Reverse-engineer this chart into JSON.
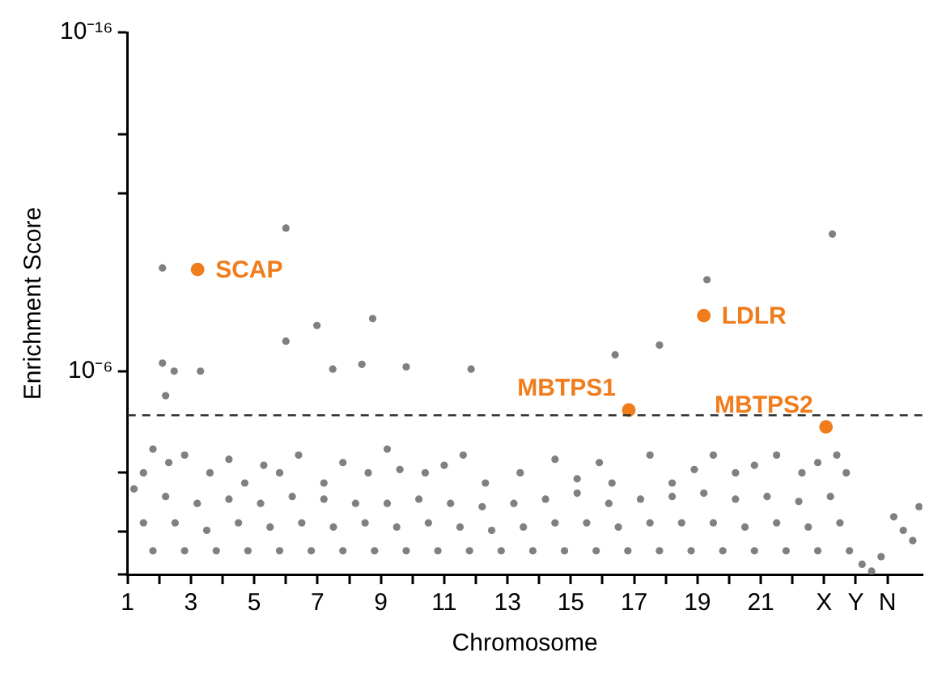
{
  "chart_data": {
    "type": "scatter",
    "xlabel": "Chromosome",
    "ylabel": "Enrichment Score",
    "log": "y",
    "grid": false,
    "legend": false,
    "marker": "circle",
    "xlim": [
      1,
      26.1
    ],
    "xticks": [
      {
        "value": 1,
        "label": "1"
      },
      {
        "value": 2,
        "label": null
      },
      {
        "value": 3,
        "label": "3"
      },
      {
        "value": 4,
        "label": null
      },
      {
        "value": 5,
        "label": "5"
      },
      {
        "value": 6,
        "label": null
      },
      {
        "value": 7,
        "label": "7"
      },
      {
        "value": 8,
        "label": null
      },
      {
        "value": 9,
        "label": "9"
      },
      {
        "value": 10,
        "label": null
      },
      {
        "value": 11,
        "label": "11"
      },
      {
        "value": 12,
        "label": null
      },
      {
        "value": 13,
        "label": "13"
      },
      {
        "value": 14,
        "label": null
      },
      {
        "value": 15,
        "label": "15"
      },
      {
        "value": 16,
        "label": null
      },
      {
        "value": 17,
        "label": "17"
      },
      {
        "value": 18,
        "label": null
      },
      {
        "value": 19,
        "label": "19"
      },
      {
        "value": 20,
        "label": null
      },
      {
        "value": 21,
        "label": "21"
      },
      {
        "value": 22,
        "label": null
      },
      {
        "value": 23,
        "label": "X"
      },
      {
        "value": 24,
        "label": "Y"
      },
      {
        "value": 25,
        "label": "N"
      }
    ],
    "ylim": [
      1,
      1e-16
    ],
    "yticks": [
      {
        "value": 1e-16,
        "label": "10⁻¹⁶"
      },
      {
        "value": 1e-13,
        "label": null
      },
      {
        "value": 5.5e-12,
        "label": null
      },
      {
        "value": 1e-06,
        "label": "10⁻⁶"
      },
      {
        "value": 0.001,
        "label": null
      },
      {
        "value": 0.055,
        "label": null
      },
      {
        "value": 1,
        "label": null
      }
    ],
    "ref_lines": [
      {
        "axis": "y",
        "value": 2e-05,
        "color": "#333333",
        "line_style": "dashed"
      }
    ],
    "series": [
      {
        "color": "#808080",
        "x": [
          2.1,
          6.0,
          19.3,
          23.26,
          6.0,
          6.98,
          8.74,
          2.1,
          3.3,
          2.47,
          8.4,
          9.8,
          11.85,
          7.48,
          17.8,
          16.4,
          2.2,
          1.5,
          1.8,
          2.3,
          2.8,
          3.6,
          4.2,
          4.7,
          5.3,
          5.8,
          6.4,
          7.2,
          7.8,
          8.6,
          9.2,
          9.6,
          10.4,
          11.0,
          11.6,
          12.3,
          13.4,
          14.5,
          15.2,
          15.9,
          16.3,
          17.5,
          18.2,
          18.9,
          19.5,
          20.2,
          20.8,
          21.5,
          22.3,
          22.8,
          23.4,
          23.7,
          1.2,
          1.5,
          1.8,
          2.2,
          2.5,
          2.8,
          3.2,
          3.5,
          3.8,
          4.2,
          4.5,
          4.8,
          5.2,
          5.5,
          5.8,
          6.2,
          6.5,
          6.8,
          7.2,
          7.5,
          7.8,
          8.2,
          8.5,
          8.8,
          9.2,
          9.5,
          9.8,
          10.2,
          10.5,
          10.8,
          11.2,
          11.5,
          11.8,
          12.2,
          12.5,
          12.8,
          13.2,
          13.5,
          13.8,
          14.2,
          14.5,
          14.8,
          15.2,
          15.5,
          15.8,
          16.2,
          16.5,
          16.8,
          17.2,
          17.5,
          17.8,
          18.2,
          18.5,
          18.8,
          19.2,
          19.5,
          19.8,
          20.2,
          20.5,
          20.8,
          21.2,
          21.5,
          21.8,
          22.2,
          22.5,
          22.8,
          23.2,
          23.5,
          23.8,
          24.2,
          24.5,
          24.8,
          25.2,
          25.5,
          25.8,
          26.0
        ],
        "values": [
          9e-10,
          6e-11,
          2e-09,
          9e-11,
          1.3e-07,
          4.5e-08,
          2.8e-08,
          5.8e-07,
          1e-06,
          1e-06,
          6.3e-07,
          7.5e-07,
          8.7e-07,
          8.7e-07,
          1.7e-07,
          3.3e-07,
          5.3e-06,
          0.001,
          0.0002,
          0.0005,
          0.0003,
          0.001,
          0.0004,
          0.002,
          0.0006,
          0.001,
          0.0003,
          0.002,
          0.0005,
          0.001,
          0.0002,
          0.0008,
          0.001,
          0.0006,
          0.0003,
          0.002,
          0.001,
          0.0004,
          0.0015,
          0.0005,
          0.002,
          0.0003,
          0.002,
          0.0008,
          0.0003,
          0.001,
          0.0006,
          0.0003,
          0.001,
          0.0005,
          0.0003,
          0.001,
          0.003,
          0.03,
          0.2,
          0.005,
          0.03,
          0.2,
          0.008,
          0.05,
          0.2,
          0.006,
          0.03,
          0.2,
          0.008,
          0.04,
          0.2,
          0.005,
          0.03,
          0.2,
          0.006,
          0.04,
          0.2,
          0.008,
          0.03,
          0.2,
          0.008,
          0.04,
          0.2,
          0.006,
          0.03,
          0.2,
          0.008,
          0.04,
          0.2,
          0.01,
          0.05,
          0.2,
          0.008,
          0.04,
          0.2,
          0.006,
          0.03,
          0.2,
          0.004,
          0.03,
          0.2,
          0.008,
          0.04,
          0.2,
          0.006,
          0.03,
          0.2,
          0.005,
          0.03,
          0.2,
          0.004,
          0.03,
          0.2,
          0.006,
          0.04,
          0.2,
          0.005,
          0.03,
          0.2,
          0.007,
          0.04,
          0.2,
          0.005,
          0.03,
          0.2,
          0.5,
          0.8,
          0.3,
          0.02,
          0.05,
          0.1,
          0.01
        ]
      },
      {
        "color": "#f07c1c",
        "x": [
          3.21,
          19.2,
          16.83,
          23.06
        ],
        "values": [
          1e-09,
          2.3e-08,
          1.4e-05,
          4.4e-05
        ]
      }
    ],
    "annotations": [
      {
        "text": "SCAP",
        "x": 3.21,
        "y": 1e-09
      },
      {
        "text": "LDLR",
        "x": 19.2,
        "y": 2.3e-08
      },
      {
        "text": "MBTPS1",
        "x": 16.83,
        "y": 1.4e-05
      },
      {
        "text": "MBTPS2",
        "x": 23.06,
        "y": 4.4e-05
      }
    ]
  }
}
